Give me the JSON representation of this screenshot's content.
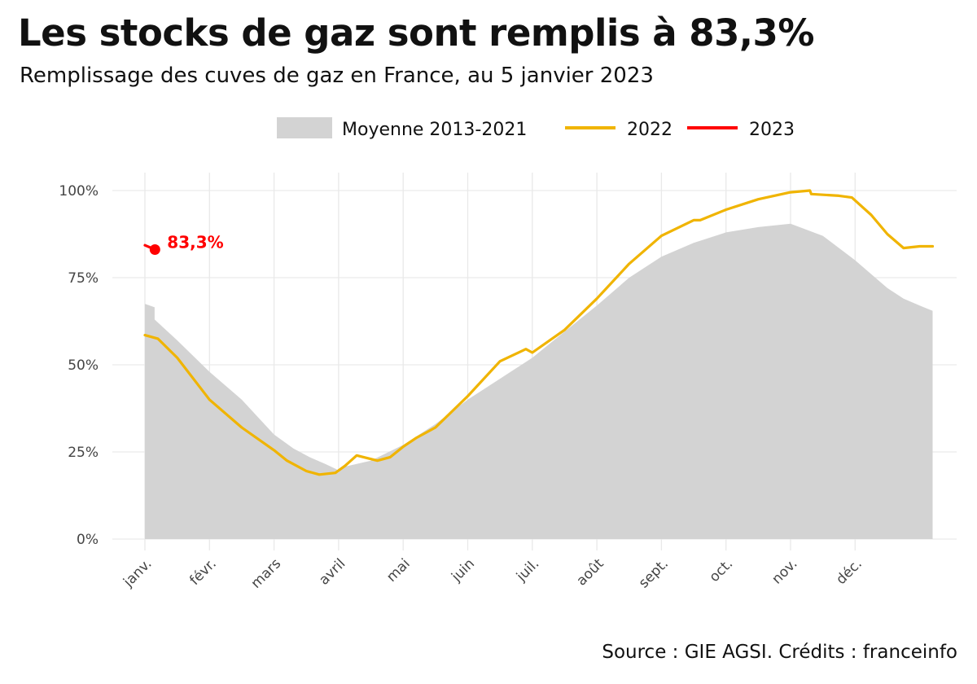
{
  "header": {
    "title": "Les stocks de gaz sont remplis à 83,3%",
    "subtitle": "Remplissage des cuves de gaz en France, au 5 janvier 2023"
  },
  "footer": {
    "source": "Source : GIE AGSI. Crédits : franceinfo"
  },
  "chart_data": {
    "type": "area",
    "x_unit": "month",
    "months": [
      "janv.",
      "févr.",
      "mars",
      "avril",
      "mai",
      "juin",
      "juil.",
      "août",
      "sept.",
      "oct.",
      "nov.",
      "déc."
    ],
    "y_ticks": [
      "0%",
      "25%",
      "50%",
      "75%",
      "100%"
    ],
    "ylim": [
      0,
      100
    ],
    "grid": true,
    "legend": {
      "position": "top",
      "entries": [
        "Moyenne 2013-2021",
        "2022",
        "2023"
      ]
    },
    "colors": {
      "moyenne": "#d3d3d3",
      "y2022": "#f0b400",
      "y2023": "#ff0000",
      "grid": "#e9e9e9"
    },
    "series": [
      {
        "name": "Moyenne 2013-2021",
        "type": "area",
        "points": [
          [
            0.0,
            67.5
          ],
          [
            0.15,
            66.5
          ],
          [
            0.15,
            63
          ],
          [
            0.5,
            57
          ],
          [
            1.0,
            48
          ],
          [
            1.5,
            40
          ],
          [
            2.0,
            30
          ],
          [
            2.3,
            26
          ],
          [
            2.55,
            23.5
          ],
          [
            2.8,
            21.5
          ],
          [
            2.97,
            20
          ],
          [
            3.0,
            19
          ],
          [
            3.03,
            20.5
          ],
          [
            3.5,
            22.5
          ],
          [
            4.0,
            27
          ],
          [
            4.5,
            33
          ],
          [
            5.0,
            40
          ],
          [
            5.5,
            46
          ],
          [
            6.0,
            52
          ],
          [
            6.5,
            59.5
          ],
          [
            7.0,
            67
          ],
          [
            7.5,
            75
          ],
          [
            8.0,
            81
          ],
          [
            8.5,
            85
          ],
          [
            9.0,
            88
          ],
          [
            9.5,
            89.5
          ],
          [
            10.0,
            90.5
          ],
          [
            10.5,
            87
          ],
          [
            11.0,
            80
          ],
          [
            11.5,
            72
          ],
          [
            11.75,
            69
          ],
          [
            12.0,
            67
          ],
          [
            12.2,
            65.5
          ]
        ]
      },
      {
        "name": "2022",
        "type": "line",
        "points": [
          [
            0.0,
            58.5
          ],
          [
            0.2,
            57.5
          ],
          [
            0.5,
            52
          ],
          [
            1.0,
            40
          ],
          [
            1.5,
            32
          ],
          [
            2.0,
            25.5
          ],
          [
            2.2,
            22.5
          ],
          [
            2.5,
            19.5
          ],
          [
            2.7,
            18.5
          ],
          [
            2.95,
            19
          ],
          [
            3.1,
            21
          ],
          [
            3.28,
            24
          ],
          [
            3.6,
            22.5
          ],
          [
            3.8,
            23.5
          ],
          [
            4.0,
            26.5
          ],
          [
            4.2,
            29
          ],
          [
            4.5,
            32
          ],
          [
            5.0,
            41
          ],
          [
            5.5,
            51
          ],
          [
            5.9,
            54.5
          ],
          [
            6.0,
            53.5
          ],
          [
            6.5,
            60
          ],
          [
            7.0,
            69
          ],
          [
            7.5,
            79
          ],
          [
            8.0,
            87
          ],
          [
            8.5,
            91.5
          ],
          [
            8.6,
            91.5
          ],
          [
            9.0,
            94.5
          ],
          [
            9.5,
            97.5
          ],
          [
            10.0,
            99.5
          ],
          [
            10.3,
            100
          ],
          [
            10.32,
            99
          ],
          [
            10.75,
            98.5
          ],
          [
            10.95,
            98
          ],
          [
            11.25,
            93
          ],
          [
            11.5,
            87.5
          ],
          [
            11.75,
            83.5
          ],
          [
            12.0,
            84
          ],
          [
            12.2,
            84
          ]
        ]
      },
      {
        "name": "2023",
        "type": "line",
        "points": [
          [
            0.0,
            84.3
          ],
          [
            0.13,
            83.3
          ]
        ],
        "last_label": "83,3%",
        "last_value": 83.3
      }
    ]
  }
}
